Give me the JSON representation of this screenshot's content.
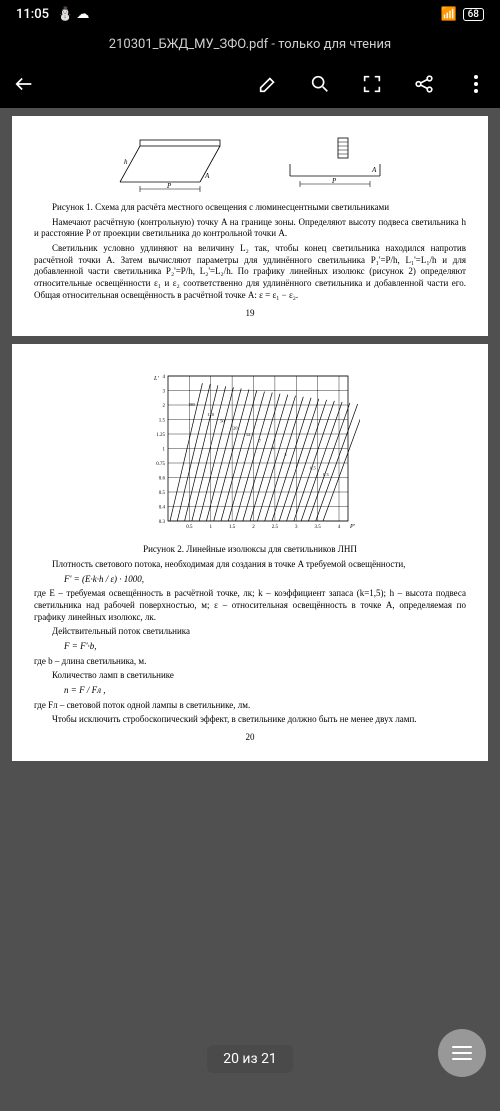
{
  "status": {
    "time": "11:05",
    "battery": "68"
  },
  "header": {
    "title": "210301_БЖД_МУ_ЗФО.pdf - только для чтения"
  },
  "page19": {
    "fig1_caption": "Рисунок 1. Схема для расчёта местного освещения с люминесцентными светильниками",
    "p1": "Намечают расчётную (контрольную) точку A на границе зоны. Определяют высоту подвеса светильника h и расстояние P от проекции светильника до контрольной точки A.",
    "p2": "Светильник условно удлиняют на величину L₂ так, чтобы конец светильника находился напротив расчётной точки A. Затем вычисляют параметры для удлинённого светильника P₁'=P/h, L₁'=L₁/h и для добавленной части светильника P₂'=P/h, L₂'=L₂/h. По графику линейных изолюкс (рисунок 2) определяют относительные освещённости ε₁ и ε₂ соответственно для удлинённого светильника и добавленной части его. Общая относительная освещённость в расчётной точке A: ε = ε₁ − ε₂.",
    "num": "19",
    "diagram": {
      "labels": {
        "h": "h",
        "A": "A",
        "P": "P"
      }
    }
  },
  "page20": {
    "chart": {
      "type": "isolux",
      "y_axis_label": "L'",
      "x_axis_label": "P'",
      "y_ticks": [
        "0.3",
        "0.4",
        "0.5",
        "0.6",
        "0.75",
        "1",
        "1.25",
        "1.5",
        "2",
        "3",
        "4"
      ],
      "x_ticks": [
        "0.5",
        "1",
        "1.5",
        "2",
        "2.5",
        "3",
        "3.5",
        "4"
      ],
      "iso_labels": [
        "180",
        "160",
        "140",
        "120",
        "100",
        "50",
        "30",
        "20",
        "15",
        "12",
        "10",
        "7",
        "5",
        "4",
        "3",
        "2",
        "1.5",
        "1",
        "0.7",
        "0.5",
        "0.4",
        "0.3"
      ],
      "line_color": "#000000",
      "grid_color": "#000000",
      "background_color": "#ffffff"
    },
    "fig2_caption": "Рисунок 2. Линейные изолюксы для светильников ЛНП",
    "p1": "Плотность светового потока, необходимая для создания в точке A требуемой освещённости,",
    "formula1": "F' = (E·k·h / ε) · 1000,",
    "p2": "где E – требуемая освещённость в расчётной точке, лк; k – коэффициент запаса (k=1,5); h – высота подвеса светильника над рабочей поверхностью, м; ε – относительная освещённость в точке A, определяемая по графику линейных изолюкс, лк.",
    "p3": "Действительный поток светильника",
    "formula2": "F = F'·b,",
    "p4": "где b – длина светильника, м.",
    "p5": "Количество ламп в светильнике",
    "formula3": "n = F / Fл ,",
    "p6": "где Fл – световой поток одной лампы в светильнике, лм.",
    "p7": "Чтобы исключить стробоскопический эффект, в светильнике должно быть не менее двух ламп.",
    "num": "20"
  },
  "indicator": {
    "text": "20 из 21"
  }
}
